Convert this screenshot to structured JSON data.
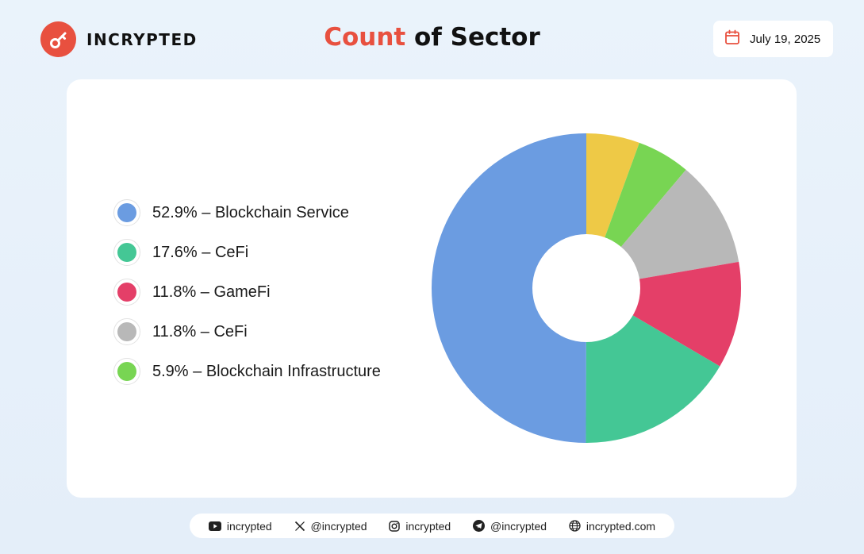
{
  "brand": {
    "name": "INCRYPTED",
    "logo_icon": "key-icon",
    "accent": "#e8503f"
  },
  "header": {
    "title_accent": "Count",
    "title_rest": " of Sector"
  },
  "date": {
    "icon": "calendar-icon",
    "text": "July 19, 2025"
  },
  "chart_data": {
    "type": "pie",
    "donut": true,
    "legend_position": "left",
    "slices": [
      {
        "label": "52.9% – Blockchain Service",
        "value": 52.9,
        "color": "#6b9ce1"
      },
      {
        "label": "17.6% – CeFi",
        "value": 17.6,
        "color": "#44c795"
      },
      {
        "label": "11.8% – GameFi",
        "value": 11.8,
        "color": "#e43f68"
      },
      {
        "label": "11.8% – CeFi",
        "value": 11.8,
        "color": "#b8b8b8"
      },
      {
        "label": "5.9% – Blockchain Infrastructure",
        "value": 5.9,
        "color": "#78d553"
      },
      {
        "label": "",
        "value": 5.9,
        "color": "#eec946"
      }
    ]
  },
  "footer": {
    "socials": [
      {
        "icon": "youtube-icon",
        "text": "incrypted"
      },
      {
        "icon": "x-icon",
        "text": "@incrypted"
      },
      {
        "icon": "instagram-icon",
        "text": "incrypted"
      },
      {
        "icon": "telegram-icon",
        "text": "@incrypted"
      },
      {
        "icon": "globe-icon",
        "text": "incrypted.com"
      }
    ]
  }
}
